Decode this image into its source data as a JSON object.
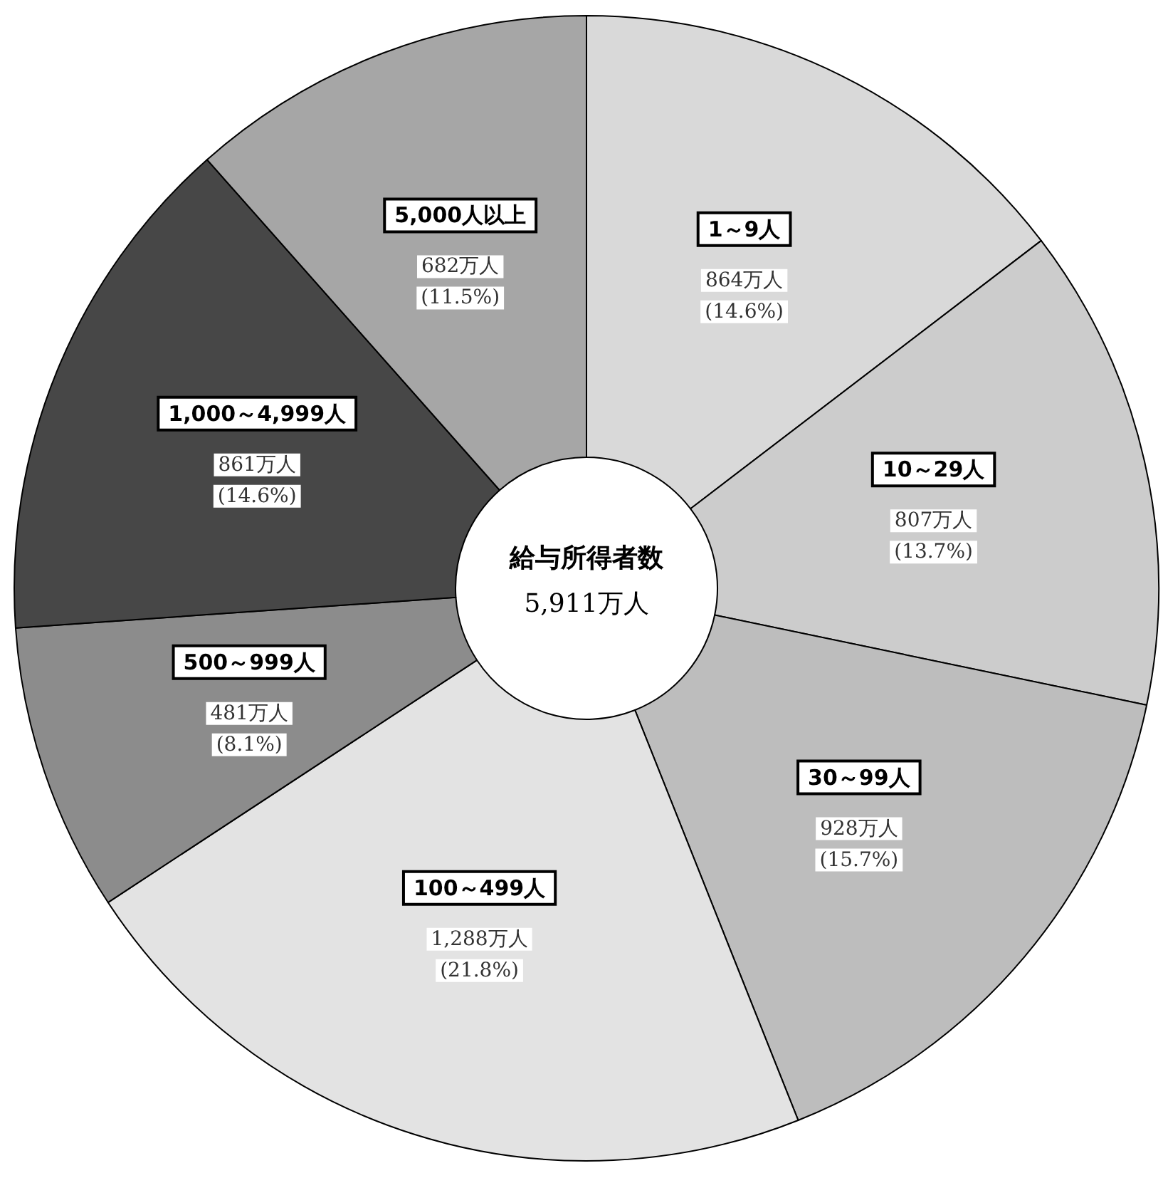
{
  "chart_data": {
    "type": "donut",
    "title": "給与所得者数",
    "subtitle": "5,911万人",
    "categories": [
      "1～9人",
      "10～29人",
      "30～99人",
      "100～499人",
      "500～999人",
      "1,000～4,999人",
      "5,000人以上"
    ],
    "values": [
      864,
      807,
      928,
      1288,
      481,
      861,
      682
    ],
    "value_labels": [
      "864万人\n(14.6%)",
      "807万人\n(13.7%)",
      "928万人\n(15.7%)",
      "1,288万人\n(21.8%)",
      "481万人\n(8.1%)",
      "861万人\n(14.6%)",
      "682万人\n(11.5%)"
    ],
    "colors": [
      "#d9d9d9",
      "#cccccc",
      "#bdbdbd",
      "#e3e3e3",
      "#8c8c8c",
      "#474747",
      "#a6a6a6"
    ],
    "legend": false
  }
}
